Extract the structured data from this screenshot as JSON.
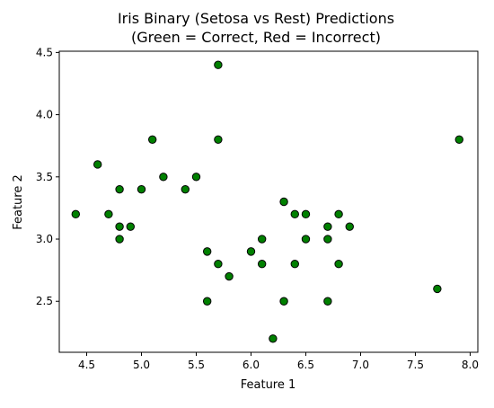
{
  "chart_data": {
    "type": "scatter",
    "title": "Iris Binary (Setosa vs Rest) Predictions",
    "subtitle": "(Green = Correct, Red = Incorrect)",
    "xlabel": "Feature 1",
    "ylabel": "Feature 2",
    "xlim": [
      4.25,
      8.07
    ],
    "ylim": [
      2.09,
      4.51
    ],
    "xticks": [
      4.5,
      5.0,
      5.5,
      6.0,
      6.5,
      7.0,
      7.5,
      8.0
    ],
    "xtick_labels": [
      "4.5",
      "5.0",
      "5.5",
      "6.0",
      "6.5",
      "7.0",
      "7.5",
      "8.0"
    ],
    "yticks": [
      2.5,
      3.0,
      3.5,
      4.0,
      4.5
    ],
    "ytick_labels": [
      "2.5",
      "3.0",
      "3.5",
      "4.0",
      "4.5"
    ],
    "grid": false,
    "colors": {
      "correct": "#008000",
      "incorrect": "#ff0000",
      "edge": "#000000"
    },
    "points": [
      {
        "x": 4.4,
        "y": 3.2,
        "correct": true
      },
      {
        "x": 4.6,
        "y": 3.6,
        "correct": true
      },
      {
        "x": 4.7,
        "y": 3.2,
        "correct": true
      },
      {
        "x": 4.8,
        "y": 3.4,
        "correct": true
      },
      {
        "x": 4.8,
        "y": 3.1,
        "correct": true
      },
      {
        "x": 4.8,
        "y": 3.0,
        "correct": true
      },
      {
        "x": 4.9,
        "y": 3.1,
        "correct": true
      },
      {
        "x": 5.0,
        "y": 3.4,
        "correct": true
      },
      {
        "x": 5.1,
        "y": 3.8,
        "correct": true
      },
      {
        "x": 5.2,
        "y": 3.5,
        "correct": true
      },
      {
        "x": 5.4,
        "y": 3.4,
        "correct": true
      },
      {
        "x": 5.5,
        "y": 3.5,
        "correct": true
      },
      {
        "x": 5.6,
        "y": 2.9,
        "correct": true
      },
      {
        "x": 5.6,
        "y": 2.5,
        "correct": true
      },
      {
        "x": 5.7,
        "y": 4.4,
        "correct": true
      },
      {
        "x": 5.7,
        "y": 3.8,
        "correct": true
      },
      {
        "x": 5.7,
        "y": 2.8,
        "correct": true
      },
      {
        "x": 5.8,
        "y": 2.7,
        "correct": true
      },
      {
        "x": 6.0,
        "y": 2.9,
        "correct": true
      },
      {
        "x": 6.1,
        "y": 3.0,
        "correct": true
      },
      {
        "x": 6.1,
        "y": 2.8,
        "correct": true
      },
      {
        "x": 6.2,
        "y": 2.2,
        "correct": true
      },
      {
        "x": 6.3,
        "y": 3.3,
        "correct": true
      },
      {
        "x": 6.3,
        "y": 2.5,
        "correct": true
      },
      {
        "x": 6.4,
        "y": 3.2,
        "correct": true
      },
      {
        "x": 6.4,
        "y": 2.8,
        "correct": true
      },
      {
        "x": 6.5,
        "y": 3.2,
        "correct": true
      },
      {
        "x": 6.5,
        "y": 3.0,
        "correct": true
      },
      {
        "x": 6.7,
        "y": 3.1,
        "correct": true
      },
      {
        "x": 6.7,
        "y": 3.0,
        "correct": true
      },
      {
        "x": 6.7,
        "y": 2.5,
        "correct": true
      },
      {
        "x": 6.8,
        "y": 3.2,
        "correct": true
      },
      {
        "x": 6.8,
        "y": 2.8,
        "correct": true
      },
      {
        "x": 6.9,
        "y": 3.1,
        "correct": true
      },
      {
        "x": 7.7,
        "y": 2.6,
        "correct": true
      },
      {
        "x": 7.9,
        "y": 3.8,
        "correct": true
      }
    ]
  }
}
